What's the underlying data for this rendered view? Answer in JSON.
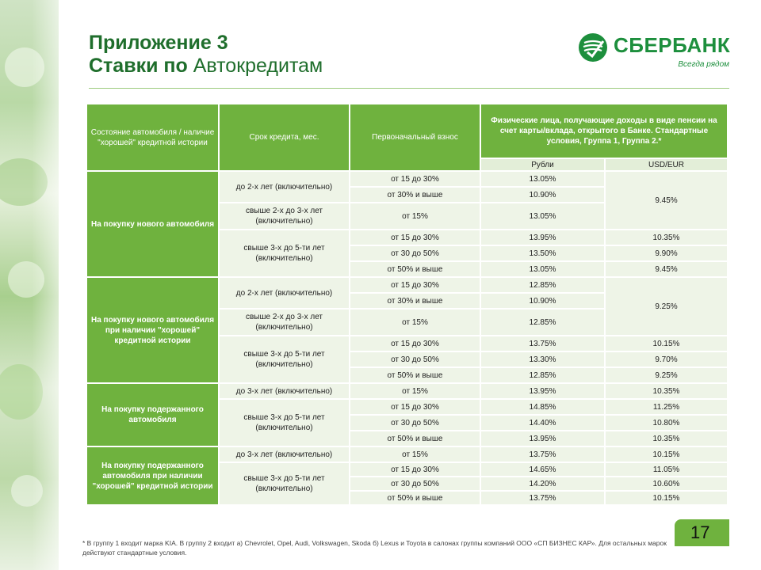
{
  "title": {
    "line1": "Приложение 3",
    "line2_bold": "Ставки по",
    "line2_rest": " Автокредитам"
  },
  "logo": {
    "name": "СБЕРБАНК",
    "tagline": "Всегда рядом",
    "color": "#1d8f3d"
  },
  "colors": {
    "accent_green": "#6fb23e",
    "title_green": "#1f6e2c",
    "cell_bg": "#eef4e7"
  },
  "table": {
    "headers": {
      "condition": "Состояние автомобиля / наличие \"хорошей\" кредитной истории",
      "term": "Срок кредита, мес.",
      "down_payment": "Первоначальный взнос",
      "individuals": "Физические лица, получающие доходы в виде пенсии на счет карты/вклада, открытого в Банке. Стандартные условия, Группа 1, Группа 2.*",
      "rub": "Рубли",
      "usd_eur": "USD/EUR"
    },
    "categories": [
      "На покупку нового автомобиля",
      "На покупку нового автомобиля при наличии \"хорошей\" кредитной истории",
      "На покупку подержанного автомобиля",
      "На покупку подержанного автомобиля при наличии \"хорошей\" кредитной истории"
    ],
    "terms": {
      "t2": "до 2-х лет (включительно)",
      "t23": "свыше 2-х до 3-х лет (включительно)",
      "t35": "свыше 3-х до 5-ти лет (включительно)",
      "t3": "до 3-х лет (включительно)"
    },
    "payments": {
      "p15_30": "от 15 до 30%",
      "p30up": "от 30% и выше",
      "p15": "от 15%",
      "p30_50": "от 30 до 50%",
      "p50up": "от 50% и выше"
    },
    "rows": [
      {
        "rub": "13.05%",
        "usd": "9.45%"
      },
      {
        "rub": "10.90%"
      },
      {
        "rub": "13.05%"
      },
      {
        "rub": "13.95%",
        "usd": "10.35%"
      },
      {
        "rub": "13.50%",
        "usd": "9.90%"
      },
      {
        "rub": "13.05%",
        "usd": "9.45%"
      },
      {
        "rub": "12.85%",
        "usd": "9.25%"
      },
      {
        "rub": "10.90%"
      },
      {
        "rub": "12.85%"
      },
      {
        "rub": "13.75%",
        "usd": "10.15%"
      },
      {
        "rub": "13.30%",
        "usd": "9.70%"
      },
      {
        "rub": "12.85%",
        "usd": "9.25%"
      },
      {
        "rub": "13.95%",
        "usd": "10.35%"
      },
      {
        "rub": "14.85%",
        "usd": "11.25%"
      },
      {
        "rub": "14.40%",
        "usd": "10.80%"
      },
      {
        "rub": "13.95%",
        "usd": "10.35%"
      },
      {
        "rub": "13.75%",
        "usd": "10.15%"
      },
      {
        "rub": "14.65%",
        "usd": "11.05%"
      },
      {
        "rub": "14.20%",
        "usd": "10.60%"
      },
      {
        "rub": "13.75%",
        "usd": "10.15%"
      }
    ]
  },
  "slide_number": "17",
  "footnote": "* В группу 1 входит марка KIA. В группу 2 входит а) Chevrolet, Opel, Audi, Volkswagen, Skoda б) Lexus и Toyota в салонах группы компаний ООО «СП БИЗНЕС КАР». Для остальных марок действуют стандартные условия."
}
